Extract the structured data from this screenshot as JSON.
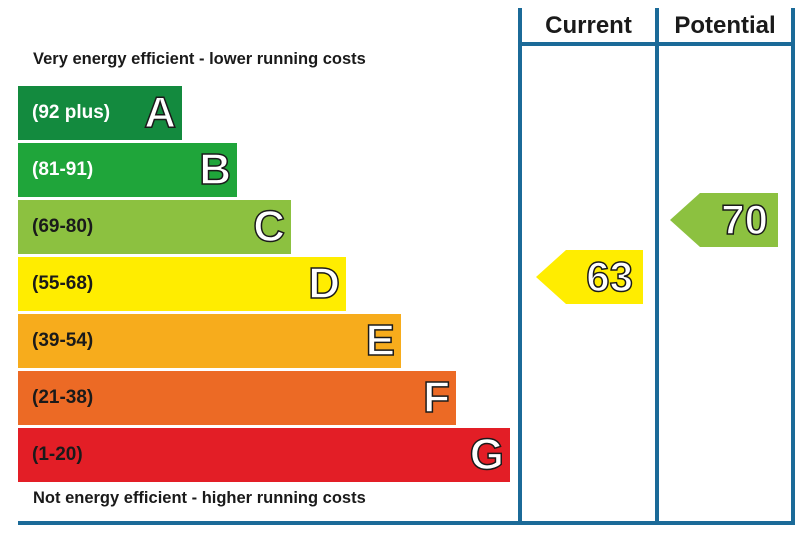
{
  "chart_data": {
    "type": "bar",
    "top_caption": "Very energy efficient - lower running costs",
    "bottom_caption": "Not energy efficient - higher running costs",
    "columns": [
      "Current",
      "Potential"
    ],
    "bands": [
      {
        "letter": "A",
        "range": "(92 plus)",
        "min": 92,
        "max": 100,
        "color": "#138a3e",
        "text_color": "#ffffff"
      },
      {
        "letter": "B",
        "range": "(81-91)",
        "min": 81,
        "max": 91,
        "color": "#1fa53a",
        "text_color": "#ffffff"
      },
      {
        "letter": "C",
        "range": "(69-80)",
        "min": 69,
        "max": 80,
        "color": "#8cc140",
        "text_color": "#1a1a1a"
      },
      {
        "letter": "D",
        "range": "(55-68)",
        "min": 55,
        "max": 68,
        "color": "#ffed00",
        "text_color": "#1a1a1a"
      },
      {
        "letter": "E",
        "range": "(39-54)",
        "min": 39,
        "max": 54,
        "color": "#f7ac1c",
        "text_color": "#1a1a1a"
      },
      {
        "letter": "F",
        "range": "(21-38)",
        "min": 21,
        "max": 38,
        "color": "#ec6a25",
        "text_color": "#1a1a1a"
      },
      {
        "letter": "G",
        "range": "(1-20)",
        "min": 1,
        "max": 20,
        "color": "#e31e26",
        "text_color": "#1a1a1a"
      }
    ],
    "current": {
      "value": 63,
      "band": "D",
      "color": "#ffed00"
    },
    "potential": {
      "value": 70,
      "band": "C",
      "color": "#8cc140"
    }
  }
}
